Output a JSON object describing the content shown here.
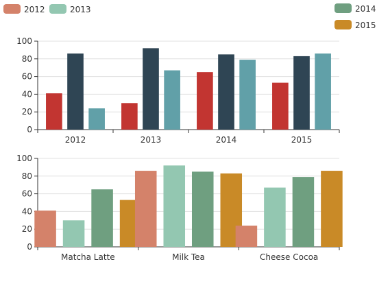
{
  "legend": {
    "items": [
      {
        "label": "2012",
        "color": "#d4826a"
      },
      {
        "label": "2013",
        "color": "#93c7b1"
      },
      {
        "label": "2014",
        "color": "#6f9f80"
      },
      {
        "label": "2015",
        "color": "#c98a27"
      }
    ]
  },
  "chart_data": [
    {
      "type": "bar",
      "categories": [
        "2012",
        "2013",
        "2014",
        "2015"
      ],
      "series": [
        {
          "values": [
            41,
            30,
            65,
            53
          ],
          "color": "#c23531"
        },
        {
          "values": [
            86,
            92,
            85,
            83
          ],
          "color": "#2f4554"
        },
        {
          "values": [
            24,
            67,
            79,
            86
          ],
          "color": "#61a0a8"
        }
      ],
      "yticks": [
        0,
        20,
        40,
        60,
        80,
        100
      ],
      "ylim": [
        0,
        100
      ],
      "grid": true
    },
    {
      "type": "bar",
      "categories": [
        "Matcha Latte",
        "Milk Tea",
        "Cheese Cocoa"
      ],
      "series": [
        {
          "name": "2012",
          "values": [
            41,
            86,
            24
          ],
          "color": "#d4826a"
        },
        {
          "name": "2013",
          "values": [
            30,
            92,
            67
          ],
          "color": "#93c7b1"
        },
        {
          "name": "2014",
          "values": [
            65,
            85,
            79
          ],
          "color": "#6f9f80"
        },
        {
          "name": "2015",
          "values": [
            53,
            83,
            86
          ],
          "color": "#c98a27"
        }
      ],
      "yticks": [
        0,
        20,
        40,
        60,
        80,
        100
      ],
      "ylim": [
        0,
        100
      ],
      "grid": true,
      "legend_position": "top"
    }
  ]
}
